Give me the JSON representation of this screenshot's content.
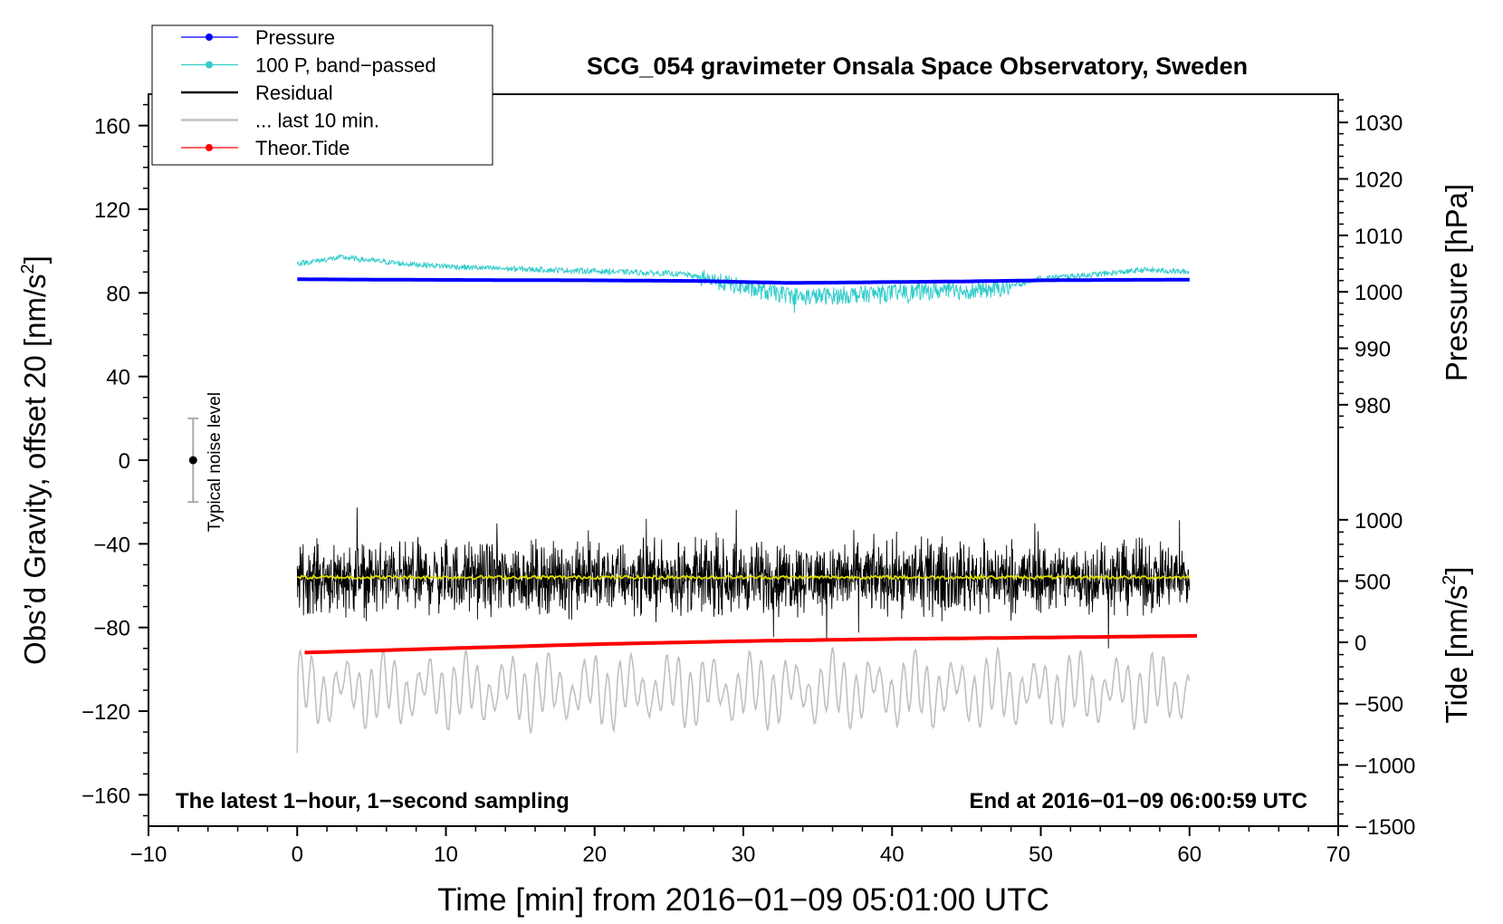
{
  "chart_data": {
    "type": "line",
    "title": "SCG_054 gravimeter Onsala Space Observatory, Sweden",
    "xlabel": "Time [min] from 2016−01−09 05:01:00 UTC",
    "ylabel_left": "Obs’d Gravity, offset 20 [nm/s",
    "ylabel_left_sup": "2",
    "ylabel_left_close": "]",
    "ylabel_right_pressure": "Pressure [hPa]",
    "ylabel_right_tide": "Tide [nm/s",
    "ylabel_right_tide_sup": "2",
    "ylabel_right_tide_close": "]",
    "xlim": [
      -10,
      70
    ],
    "ylim_left": [
      -175,
      175
    ],
    "x_ticks": [
      {
        "v": -10,
        "label": "−10"
      },
      {
        "v": 0,
        "label": "0"
      },
      {
        "v": 10,
        "label": "10"
      },
      {
        "v": 20,
        "label": "20"
      },
      {
        "v": 30,
        "label": "30"
      },
      {
        "v": 40,
        "label": "40"
      },
      {
        "v": 50,
        "label": "50"
      },
      {
        "v": 60,
        "label": "60"
      },
      {
        "v": 70,
        "label": "70"
      }
    ],
    "y_ticks_left": [
      {
        "v": 160,
        "label": "160"
      },
      {
        "v": 120,
        "label": "120"
      },
      {
        "v": 80,
        "label": "80"
      },
      {
        "v": 40,
        "label": "40"
      },
      {
        "v": 0,
        "label": "0"
      },
      {
        "v": -40,
        "label": "−40"
      },
      {
        "v": -80,
        "label": "−80"
      },
      {
        "v": -120,
        "label": "−120"
      },
      {
        "v": -160,
        "label": "−160"
      }
    ],
    "pressure_axis": {
      "ref": [
        {
          "hpa": 1030,
          "grav": 161.5
        },
        {
          "hpa": 980,
          "grav": 26.5
        }
      ],
      "ticks": [
        {
          "v": 1030,
          "label": "1030"
        },
        {
          "v": 1020,
          "label": "1020"
        },
        {
          "v": 1010,
          "label": "1010"
        },
        {
          "v": 1000,
          "label": "1000"
        },
        {
          "v": 990,
          "label": "990"
        },
        {
          "v": 980,
          "label": "980"
        }
      ]
    },
    "tide_axis": {
      "ref": [
        {
          "tide": 1000,
          "grav": -28.5
        },
        {
          "tide": -1500,
          "grav": -175
        }
      ],
      "ticks": [
        {
          "v": 1000,
          "label": "1000"
        },
        {
          "v": 500,
          "label": "500"
        },
        {
          "v": 0,
          "label": "0"
        },
        {
          "v": -500,
          "label": "−500"
        },
        {
          "v": -1000,
          "label": "−1000"
        },
        {
          "v": -1500,
          "label": "−1500"
        }
      ]
    },
    "legend": [
      {
        "label": "Pressure",
        "color": "#0000ff",
        "marker": true
      },
      {
        "label": "100 P, band−passed",
        "color": "#33cccc",
        "marker": true
      },
      {
        "label": "Residual",
        "color": "#000000",
        "marker": false
      },
      {
        "label": "... last 10 min.",
        "color": "#c0c0c0",
        "marker": false
      },
      {
        "label": "Theor.Tide",
        "color": "#ff0000",
        "marker": true
      }
    ],
    "series": [
      {
        "name": "Pressure",
        "color": "#0000ff",
        "x": [
          0,
          10,
          20,
          27,
          30,
          33,
          36,
          40,
          45,
          50,
          55,
          60
        ],
        "y": [
          86.5,
          86.2,
          86.0,
          85.7,
          85.2,
          84.8,
          84.9,
          85.2,
          85.5,
          86.0,
          86.2,
          86.3
        ]
      },
      {
        "name": "100 P, band−passed",
        "color": "#33cccc",
        "x": [
          0,
          3,
          7,
          12,
          17,
          22,
          26,
          28,
          31,
          34,
          37,
          40,
          43,
          46,
          48,
          50,
          54,
          57,
          60
        ],
        "y": [
          94,
          97,
          94,
          92,
          91,
          90,
          89,
          86,
          81,
          78,
          79,
          80,
          81,
          81,
          83,
          87,
          89,
          91,
          90
        ]
      },
      {
        "name": "Residual",
        "color": "#000000",
        "x": [
          0,
          60
        ],
        "y": [
          -56,
          -56
        ],
        "spread": [
          -90,
          -22
        ]
      },
      {
        "name": "Residual smoothed",
        "color": "#dddd00",
        "x": [
          0,
          60
        ],
        "y": [
          -56,
          -56
        ]
      },
      {
        "name": "... last 10 min.",
        "color": "#c0c0c0",
        "x": [
          0,
          60
        ],
        "y": [
          -110,
          -110
        ],
        "spread": [
          -140,
          -80
        ]
      },
      {
        "name": "Theor.Tide",
        "color": "#ff0000",
        "x": [
          0.5,
          10,
          20,
          30,
          40,
          50,
          60.5
        ],
        "y": [
          -92,
          -90,
          -88,
          -86.5,
          -85.5,
          -84.8,
          -84
        ]
      }
    ],
    "noise_bar": {
      "x": -7,
      "center": 0,
      "low": -20,
      "high": 20,
      "label": "Typical noise level"
    },
    "annotations": {
      "left": "The latest 1−hour, 1−second sampling",
      "right": "End at 2016−01−09 06:00:59 UTC"
    }
  }
}
